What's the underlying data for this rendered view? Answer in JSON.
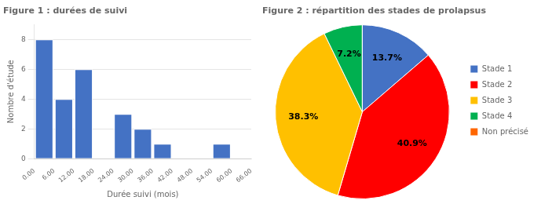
{
  "chart_data": [
    {
      "type": "histogram",
      "title": "Figure 1 : durées de suivi",
      "x_label": "Durée suivi (mois)",
      "y_label": "Nombre d'étude",
      "bins": [
        0,
        6,
        12,
        18,
        24,
        30,
        36,
        42,
        48,
        54,
        60,
        66
      ],
      "values": [
        8,
        4,
        6,
        0,
        3,
        2,
        1,
        0,
        0,
        1,
        0
      ],
      "color": "#4472C4",
      "xlim": [
        0,
        66
      ],
      "xticks": [
        {
          "value": 0,
          "label": "0.00"
        },
        {
          "value": 6,
          "label": "6.00"
        },
        {
          "value": 12,
          "label": "12.00"
        },
        {
          "value": 18,
          "label": "18.00"
        },
        {
          "value": 24,
          "label": "24.00"
        },
        {
          "value": 30,
          "label": "30.00"
        },
        {
          "value": 36,
          "label": "36.00"
        },
        {
          "value": 42,
          "label": "42.00"
        },
        {
          "value": 48,
          "label": "48.00"
        },
        {
          "value": 54,
          "label": "54.00"
        },
        {
          "value": 60,
          "label": "60.00"
        },
        {
          "value": 66,
          "label": "66.00"
        }
      ],
      "ylim": [
        0,
        9
      ],
      "yticks": [
        0,
        2,
        4,
        6,
        8
      ],
      "grid": true
    },
    {
      "type": "pie",
      "title": "Figure 2 : répartition des stades de prolapsus",
      "categories": [
        "Stade 1",
        "Stade 2",
        "Stade 3",
        "Stade 4",
        "Non précisé"
      ],
      "values": [
        13.7,
        40.9,
        38.3,
        7.2,
        0.001
      ],
      "colors": [
        "#4472C4",
        "#FF0000",
        "#FFC000",
        "#00B050",
        "#FF6600"
      ],
      "data_labels": true,
      "value_labels": [
        "13.7%",
        "40.9%",
        "38.3%",
        "7.2%",
        null
      ],
      "legend": "right"
    }
  ]
}
